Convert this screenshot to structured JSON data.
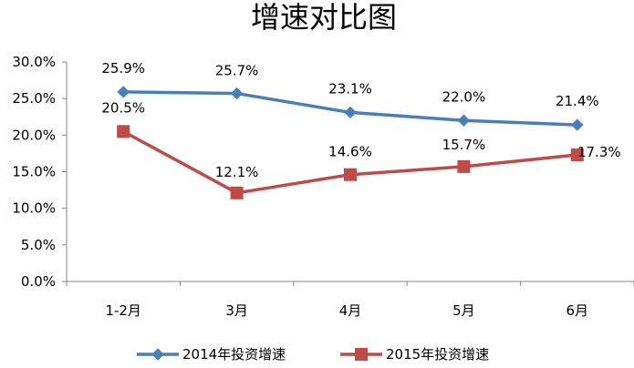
{
  "chart_data": {
    "type": "line",
    "title": "增速对比图",
    "xlabel": "",
    "ylabel": "",
    "categories": [
      "1-2月",
      "3月",
      "4月",
      "5月",
      "6月"
    ],
    "ylim": [
      0,
      30
    ],
    "yticks": [
      "0.0%",
      "5.0%",
      "10.0%",
      "15.0%",
      "20.0%",
      "25.0%",
      "30.0%"
    ],
    "ytick_values": [
      0,
      5,
      10,
      15,
      20,
      25,
      30
    ],
    "grid": false,
    "legend_position": "bottom",
    "series": [
      {
        "name": "2014年投资增速",
        "values": [
          25.9,
          25.7,
          23.1,
          22.0,
          21.4
        ],
        "labels": [
          "25.9%",
          "25.7%",
          "23.1%",
          "22.0%",
          "21.4%"
        ],
        "color": "#4a7ebb",
        "marker": "diamond"
      },
      {
        "name": "2015年投资增速",
        "values": [
          20.5,
          12.1,
          14.6,
          15.7,
          17.3
        ],
        "labels": [
          "20.5%",
          "12.1%",
          "14.6%",
          "15.7%",
          "17.3%"
        ],
        "color": "#be4b48",
        "marker": "square"
      }
    ]
  }
}
